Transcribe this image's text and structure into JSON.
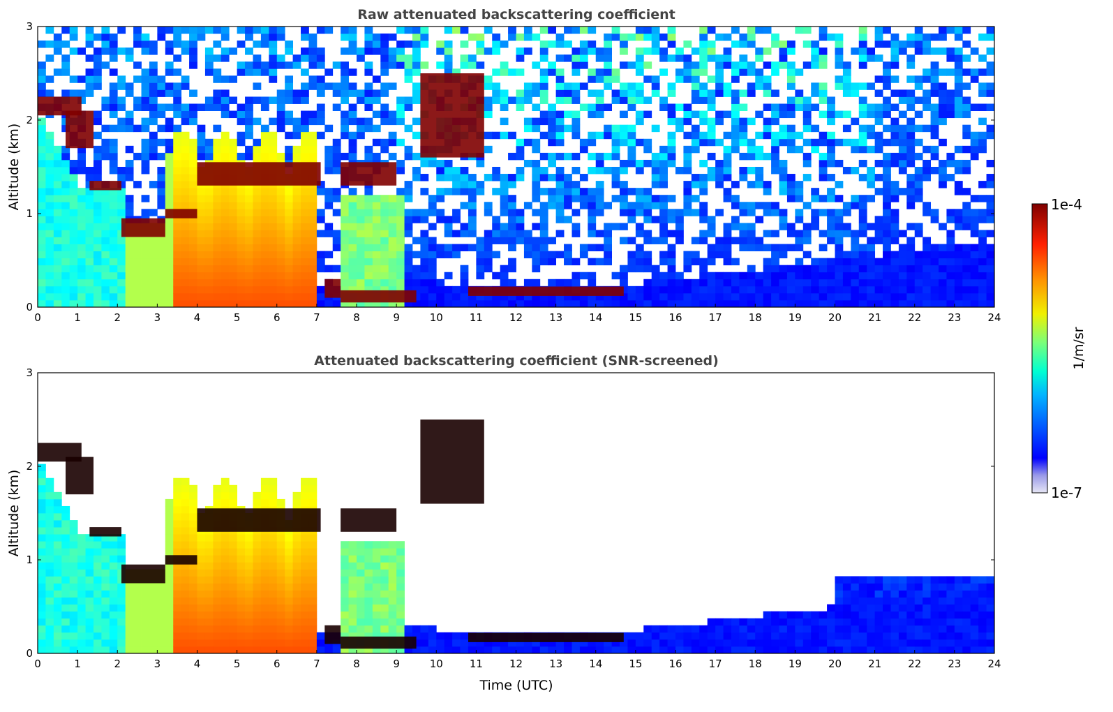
{
  "chart_data": [
    {
      "type": "heatmap",
      "title": "Raw attenuated backscattering coefficient",
      "xlabel": "",
      "ylabel": "Altitude (km)",
      "xlim": [
        0,
        24
      ],
      "ylim": [
        0,
        3
      ],
      "xticks": [
        "0",
        "1",
        "2",
        "3",
        "4",
        "5",
        "6",
        "7",
        "8",
        "9",
        "10",
        "11",
        "12",
        "13",
        "14",
        "15",
        "16",
        "17",
        "18",
        "19",
        "20",
        "21",
        "22",
        "23",
        "24"
      ],
      "yticks": [
        "0",
        "1",
        "2",
        "3"
      ],
      "screened": false,
      "cloud_layers": [
        {
          "t": [
            0.0,
            1.1
          ],
          "alt": [
            2.05,
            2.25
          ]
        },
        {
          "t": [
            0.7,
            1.4
          ],
          "alt": [
            1.7,
            2.1
          ]
        },
        {
          "t": [
            1.3,
            2.1
          ],
          "alt": [
            1.25,
            1.35
          ]
        },
        {
          "t": [
            2.1,
            3.2
          ],
          "alt": [
            0.75,
            0.95
          ]
        },
        {
          "t": [
            3.2,
            4.0
          ],
          "alt": [
            0.95,
            1.05
          ]
        },
        {
          "t": [
            4.0,
            7.1
          ],
          "alt": [
            1.3,
            1.55
          ]
        },
        {
          "t": [
            7.2,
            7.6
          ],
          "alt": [
            0.1,
            0.3
          ]
        },
        {
          "t": [
            7.6,
            9.5
          ],
          "alt": [
            0.05,
            0.18
          ]
        },
        {
          "t": [
            7.6,
            9.0
          ],
          "alt": [
            1.3,
            1.55
          ]
        },
        {
          "t": [
            9.6,
            11.2
          ],
          "alt": [
            1.6,
            2.5
          ]
        },
        {
          "t": [
            10.8,
            14.7
          ],
          "alt": [
            0.12,
            0.22
          ]
        }
      ]
    },
    {
      "type": "heatmap",
      "title": "Attenuated backscattering coefficient (SNR-screened)",
      "xlabel": "Time (UTC)",
      "ylabel": "Altitude (km)",
      "xlim": [
        0,
        24
      ],
      "ylim": [
        0,
        3
      ],
      "xticks": [
        "0",
        "1",
        "2",
        "3",
        "4",
        "5",
        "6",
        "7",
        "8",
        "9",
        "10",
        "11",
        "12",
        "13",
        "14",
        "15",
        "16",
        "17",
        "18",
        "19",
        "20",
        "21",
        "22",
        "23",
        "24"
      ],
      "yticks": [
        "0",
        "1",
        "2",
        "3"
      ],
      "screened": true,
      "cloud_layers": [
        {
          "t": [
            0.0,
            1.1
          ],
          "alt": [
            2.05,
            2.25
          ]
        },
        {
          "t": [
            0.7,
            1.4
          ],
          "alt": [
            1.7,
            2.1
          ]
        },
        {
          "t": [
            1.3,
            2.1
          ],
          "alt": [
            1.25,
            1.35
          ]
        },
        {
          "t": [
            2.1,
            3.2
          ],
          "alt": [
            0.75,
            0.95
          ]
        },
        {
          "t": [
            3.2,
            4.0
          ],
          "alt": [
            0.95,
            1.05
          ]
        },
        {
          "t": [
            4.0,
            7.1
          ],
          "alt": [
            1.3,
            1.55
          ]
        },
        {
          "t": [
            7.2,
            7.6
          ],
          "alt": [
            0.1,
            0.3
          ]
        },
        {
          "t": [
            7.6,
            9.5
          ],
          "alt": [
            0.05,
            0.18
          ]
        },
        {
          "t": [
            7.6,
            9.0
          ],
          "alt": [
            1.3,
            1.55
          ]
        },
        {
          "t": [
            9.6,
            11.2
          ],
          "alt": [
            1.6,
            2.5
          ]
        },
        {
          "t": [
            10.8,
            14.7
          ],
          "alt": [
            0.12,
            0.22
          ]
        }
      ]
    }
  ],
  "colorbar": {
    "label": "1/m/sr",
    "max_label": "1e-4",
    "min_label": "1e-7",
    "colormap": "jet",
    "low_color": "#e6e6f5",
    "high_color": "#7f0000"
  }
}
